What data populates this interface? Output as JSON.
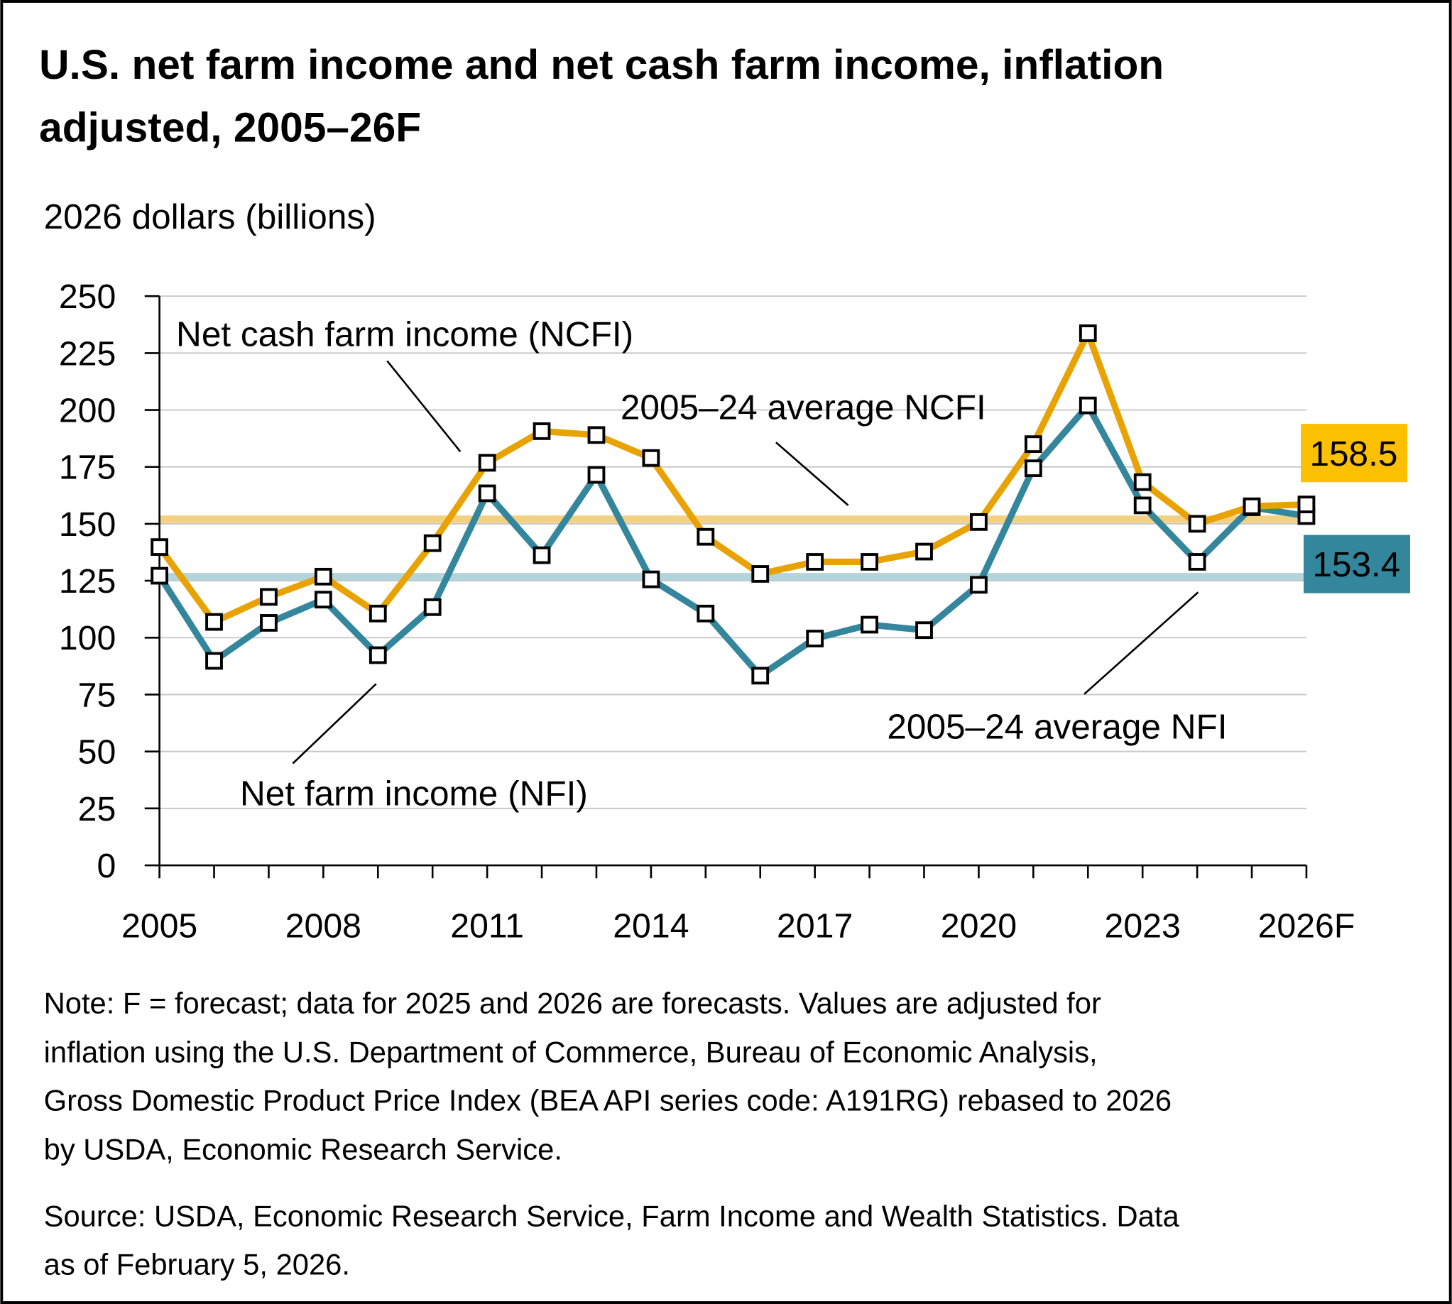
{
  "chart_data": {
    "type": "line",
    "title_lines": [
      "U.S. net farm income and net cash farm income, inflation",
      "adjusted, 2005–26F"
    ],
    "ylabel": "2026 dollars (billions)",
    "xlabel": "",
    "ylim": [
      0,
      250
    ],
    "yticks": [
      0,
      25,
      50,
      75,
      100,
      125,
      150,
      175,
      200,
      225,
      250
    ],
    "x": [
      2005,
      2006,
      2007,
      2008,
      2009,
      2010,
      2011,
      2012,
      2013,
      2014,
      2015,
      2016,
      2017,
      2018,
      2019,
      2020,
      2021,
      2022,
      2023,
      2024,
      2025,
      2026
    ],
    "xtick_labels": [
      {
        "year": 2005,
        "label": "2005"
      },
      {
        "year": 2008,
        "label": "2008"
      },
      {
        "year": 2011,
        "label": "2011"
      },
      {
        "year": 2014,
        "label": "2014"
      },
      {
        "year": 2017,
        "label": "2017"
      },
      {
        "year": 2020,
        "label": "2020"
      },
      {
        "year": 2023,
        "label": "2023"
      },
      {
        "year": 2026,
        "label": "2026F"
      }
    ],
    "grid": true,
    "series": [
      {
        "name": "Net cash farm income (NCFI)",
        "color": "#E8A202",
        "values": [
          139.8,
          106.9,
          117.9,
          126.8,
          110.6,
          141.5,
          176.8,
          190.7,
          189.0,
          178.9,
          144.3,
          128.0,
          133.3,
          133.3,
          137.8,
          150.8,
          185.0,
          233.7,
          168.3,
          150.0,
          157.7,
          158.5
        ]
      },
      {
        "name": "Net farm income (NFI)",
        "color": "#33869B",
        "values": [
          127.2,
          89.8,
          106.5,
          116.7,
          92.3,
          113.4,
          163.4,
          136.2,
          171.5,
          125.6,
          110.6,
          83.3,
          99.6,
          105.7,
          103.3,
          123.2,
          174.4,
          202.0,
          158.1,
          133.3,
          157.3,
          153.4
        ]
      }
    ],
    "reference_lines": [
      {
        "name": "2005–24 average NCFI",
        "value": 152.0,
        "color": "#F2C96E"
      },
      {
        "name": "2005–24 average NFI",
        "value": 126.8,
        "color": "#A8CDD6"
      }
    ],
    "end_labels": [
      {
        "text": "158.5",
        "bg": "#FCC000",
        "fg": "#333333"
      },
      {
        "text": "153.4",
        "bg": "#33869B",
        "fg": "#FFFFFF"
      }
    ],
    "annotations": {
      "ncfi": "Net cash farm income (NCFI)",
      "nfi": "Net farm income (NFI)",
      "avg_ncfi": "2005–24 average NCFI",
      "avg_nfi": "2005–24 average NFI"
    },
    "note_lines": [
      "Note: F = forecast; data for 2025 and 2026 are forecasts. Values are adjusted for",
      "inflation using the U.S. Department of Commerce, Bureau of Economic Analysis,",
      "Gross Domestic Product Price Index (BEA API series code: A191RG) rebased to 2026",
      "by USDA, Economic Research Service."
    ],
    "source_lines": [
      "Source: USDA, Economic Research Service, Farm Income and Wealth Statistics. Data",
      "as of February 5, 2026."
    ]
  }
}
